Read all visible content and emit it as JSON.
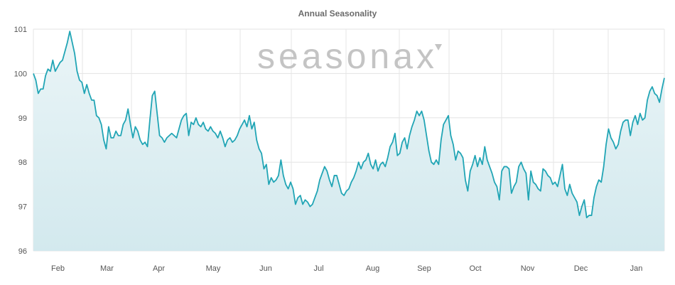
{
  "chart_data": {
    "type": "area",
    "title": "Annual Seasonality",
    "watermark": "seasonax",
    "xlabel": "",
    "ylabel": "",
    "ylim": [
      96,
      101
    ],
    "y_ticks": [
      96,
      97,
      98,
      99,
      100,
      101
    ],
    "x_tick_labels": [
      "Feb",
      "Mar",
      "Apr",
      "May",
      "Jun",
      "Jul",
      "Aug",
      "Sep",
      "Oct",
      "Nov",
      "Dec",
      "Jan"
    ],
    "grid": true,
    "legend": "none",
    "line_color": "#21a5b5",
    "fill_color": "#d3e9ee",
    "series": [
      {
        "values": [
          100.0,
          99.85,
          99.55,
          99.65,
          99.65,
          99.95,
          100.1,
          100.05,
          100.3,
          100.05,
          100.15,
          100.25,
          100.3,
          100.5,
          100.7,
          100.95,
          100.7,
          100.45,
          100.05,
          99.85,
          99.8,
          99.55,
          99.75,
          99.55,
          99.4,
          99.4,
          99.05,
          99.0,
          98.85,
          98.5,
          98.3,
          98.8,
          98.55,
          98.55,
          98.7,
          98.6,
          98.6,
          98.85,
          98.95,
          99.2,
          98.85,
          98.55,
          98.8,
          98.7,
          98.5,
          98.4,
          98.45,
          98.35,
          98.95,
          99.5,
          99.6,
          99.1,
          98.6,
          98.55,
          98.45,
          98.55,
          98.6,
          98.65,
          98.6,
          98.55,
          98.75,
          98.95,
          99.05,
          99.1,
          98.6,
          98.9,
          98.85,
          99.0,
          98.85,
          98.8,
          98.9,
          98.75,
          98.7,
          98.8,
          98.7,
          98.65,
          98.55,
          98.7,
          98.55,
          98.35,
          98.5,
          98.55,
          98.45,
          98.5,
          98.6,
          98.75,
          98.85,
          98.95,
          98.8,
          99.05,
          98.75,
          98.9,
          98.5,
          98.3,
          98.2,
          97.85,
          97.95,
          97.5,
          97.65,
          97.55,
          97.6,
          97.7,
          98.05,
          97.7,
          97.5,
          97.4,
          97.55,
          97.4,
          97.05,
          97.2,
          97.25,
          97.05,
          97.15,
          97.1,
          97.0,
          97.05,
          97.2,
          97.35,
          97.6,
          97.75,
          97.9,
          97.8,
          97.6,
          97.45,
          97.7,
          97.7,
          97.5,
          97.3,
          97.25,
          97.35,
          97.4,
          97.55,
          97.65,
          97.8,
          98.0,
          97.85,
          98.0,
          98.05,
          98.2,
          97.95,
          97.85,
          98.05,
          97.8,
          97.95,
          98.0,
          97.9,
          98.1,
          98.35,
          98.45,
          98.65,
          98.15,
          98.2,
          98.45,
          98.55,
          98.3,
          98.6,
          98.8,
          98.95,
          99.15,
          99.05,
          99.15,
          98.95,
          98.6,
          98.25,
          98.0,
          97.95,
          98.05,
          97.95,
          98.5,
          98.85,
          98.95,
          99.05,
          98.6,
          98.4,
          98.05,
          98.25,
          98.2,
          98.1,
          97.6,
          97.35,
          97.8,
          97.95,
          98.15,
          97.9,
          98.1,
          97.95,
          98.35,
          98.05,
          97.9,
          97.75,
          97.55,
          97.45,
          97.15,
          97.8,
          97.9,
          97.9,
          97.85,
          97.3,
          97.45,
          97.55,
          97.9,
          98.0,
          97.85,
          97.75,
          97.15,
          97.8,
          97.55,
          97.5,
          97.4,
          97.35,
          97.85,
          97.8,
          97.7,
          97.65,
          97.5,
          97.55,
          97.45,
          97.7,
          97.95,
          97.4,
          97.25,
          97.5,
          97.3,
          97.2,
          97.1,
          96.8,
          97.0,
          97.15,
          96.75,
          96.8,
          96.8,
          97.2,
          97.45,
          97.6,
          97.55,
          97.9,
          98.4,
          98.75,
          98.55,
          98.45,
          98.3,
          98.4,
          98.7,
          98.9,
          98.95,
          98.95,
          98.6,
          98.9,
          99.05,
          98.85,
          99.1,
          98.95,
          99.0,
          99.4,
          99.6,
          99.7,
          99.55,
          99.5,
          99.35,
          99.65,
          99.9
        ]
      }
    ]
  }
}
